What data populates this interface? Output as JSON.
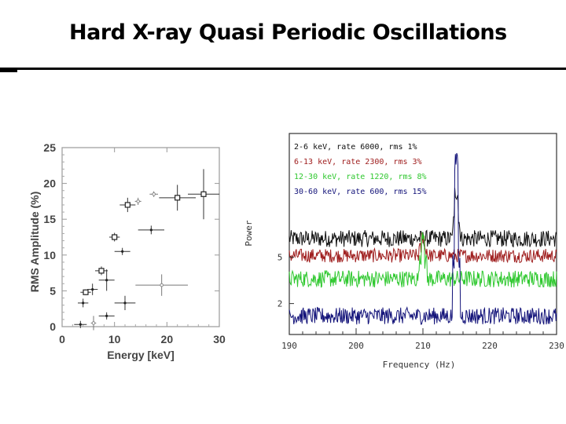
{
  "slide": {
    "title": "Hard X-ray Quasi Periodic Oscillations"
  },
  "chart_data": [
    {
      "type": "scatter",
      "xlabel": "Energy [keV]",
      "ylabel": "RMS Amplitude (%)",
      "xlim": [
        0,
        30
      ],
      "ylim": [
        0,
        25
      ],
      "xticks": [
        "0",
        "10",
        "20",
        "30"
      ],
      "yticks": [
        "0",
        "5",
        "10",
        "15",
        "20",
        "25"
      ],
      "series": [
        {
          "name": "squares",
          "marker": "square",
          "points": [
            {
              "x": 4.5,
              "y": 4.8,
              "xerr": 1.0,
              "yerr": 0.4
            },
            {
              "x": 7.5,
              "y": 7.8,
              "xerr": 1.2,
              "yerr": 0.6
            },
            {
              "x": 10,
              "y": 12.5,
              "xerr": 1.0,
              "yerr": 0.6
            },
            {
              "x": 12.5,
              "y": 17,
              "xerr": 1.5,
              "yerr": 1.0
            },
            {
              "x": 22,
              "y": 18,
              "xerr": 3.5,
              "yerr": 1.8
            },
            {
              "x": 27,
              "y": 18.5,
              "xerr": 3.0,
              "yerr": 3.5
            }
          ]
        },
        {
          "name": "crosses",
          "marker": "cross",
          "points": [
            {
              "x": 3.5,
              "y": 0.3,
              "xerr": 1.2,
              "yerr": 0.5
            },
            {
              "x": 4,
              "y": 3.3,
              "xerr": 1.0,
              "yerr": 0.6
            },
            {
              "x": 5.8,
              "y": 5.2,
              "xerr": 1.0,
              "yerr": 0.8
            },
            {
              "x": 8.5,
              "y": 6.5,
              "xerr": 1.5,
              "yerr": 1.5
            },
            {
              "x": 8.5,
              "y": 1.5,
              "xerr": 1.5,
              "yerr": 0.5
            },
            {
              "x": 12,
              "y": 3.3,
              "xerr": 2.0,
              "yerr": 1.0
            },
            {
              "x": 11.5,
              "y": 10.5,
              "xerr": 1.5,
              "yerr": 0.5
            },
            {
              "x": 17,
              "y": 13.5,
              "xerr": 2.5,
              "yerr": 0.6
            }
          ]
        },
        {
          "name": "faint",
          "marker": "small",
          "points": [
            {
              "x": 6,
              "y": 0.5,
              "xerr": 0.5,
              "yerr": 1.0
            },
            {
              "x": 14.5,
              "y": 17.5,
              "xerr": 0.6,
              "yerr": 0.5
            },
            {
              "x": 17.5,
              "y": 18.5,
              "xerr": 0.8,
              "yerr": 0.4
            },
            {
              "x": 19,
              "y": 5.8,
              "xerr": 5.0,
              "yerr": 1.5
            }
          ]
        }
      ]
    },
    {
      "type": "line",
      "xlabel": "Frequency (Hz)",
      "ylabel": "Power",
      "xlim": [
        190,
        230
      ],
      "xticks": [
        "190",
        "200",
        "210",
        "220",
        "230"
      ],
      "ytick_labels": [
        {
          "value": 5,
          "label": "5"
        },
        {
          "value": 2,
          "label": "2"
        }
      ],
      "legend": [
        {
          "text": "2-6 keV, rate 6000, rms 1%",
          "color": "#111111"
        },
        {
          "text": "6-13 keV, rate 2300, rms 3%",
          "color": "#a02020"
        },
        {
          "text": "12-30 keV, rate 1220, rms 8%",
          "color": "#2fc82f"
        },
        {
          "text": "30-60 keV, rate 600, rms 15%",
          "color": "#14147a"
        }
      ],
      "series": [
        {
          "name": "2-6 keV",
          "color": "#111111",
          "baseline": 6.2,
          "noise": 0.55,
          "peak_x": 215,
          "peak_height": 3.0
        },
        {
          "name": "6-13 keV",
          "color": "#a02020",
          "baseline": 5.1,
          "noise": 0.45,
          "peak_x": 210,
          "peak_height": 1.2
        },
        {
          "name": "12-30 keV",
          "color": "#2fc82f",
          "baseline": 3.6,
          "noise": 0.55,
          "peak_x": 210,
          "peak_height": 3.0
        },
        {
          "name": "30-60 keV",
          "color": "#14147a",
          "baseline": 1.2,
          "noise": 0.55,
          "peak_x": 215,
          "peak_height": 10.0
        }
      ],
      "ylim": [
        0,
        13
      ]
    }
  ]
}
